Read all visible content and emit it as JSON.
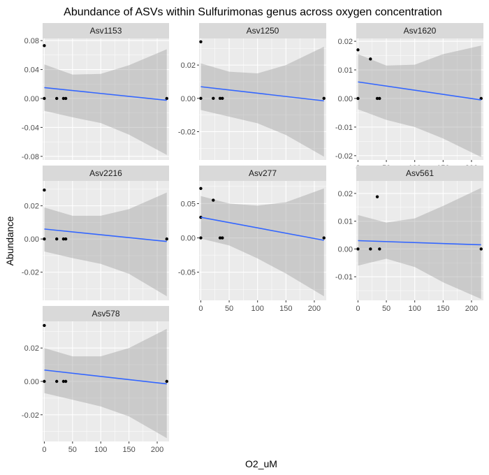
{
  "chart_data": {
    "type": "scatter",
    "title": "Abundance of ASVs within Sulfurimonas genus across oxygen concentration",
    "xlabel": "O2_uM",
    "ylabel": "Abundance",
    "xlim": [
      -3,
      221
    ],
    "xticks": [
      0,
      50,
      100,
      150,
      200
    ],
    "colors": {
      "panel_bg": "#ebebeb",
      "strip_bg": "#d9d9d9",
      "grid": "#ffffff",
      "ribbon": "#999999",
      "line": "#3366ff",
      "point": "#000000"
    },
    "panels": [
      {
        "name": "Asv1153",
        "ylim": [
          -0.085,
          0.083
        ],
        "yticks": [
          -0.08,
          -0.04,
          0.0,
          0.04,
          0.08
        ],
        "ytick_labels": [
          "-0.08",
          "-0.04",
          "0.00",
          "0.04",
          "0.08"
        ],
        "points": [
          [
            0,
            0.073
          ],
          [
            0,
            0.0
          ],
          [
            22,
            0.0
          ],
          [
            34,
            0.0
          ],
          [
            38,
            0.0
          ],
          [
            217,
            0.0
          ]
        ],
        "fit": [
          0.015,
          -0.0025
        ],
        "band_upper": [
          [
            0,
            0.047
          ],
          [
            50,
            0.033
          ],
          [
            100,
            0.034
          ],
          [
            150,
            0.046
          ],
          [
            217,
            0.068
          ]
        ],
        "band_lower": [
          [
            0,
            -0.017
          ],
          [
            50,
            -0.026
          ],
          [
            100,
            -0.034
          ],
          [
            150,
            -0.05
          ],
          [
            217,
            -0.078
          ]
        ]
      },
      {
        "name": "Asv1250",
        "ylim": [
          -0.037,
          0.036
        ],
        "yticks": [
          -0.02,
          0.0,
          0.02
        ],
        "ytick_labels": [
          "-0.02",
          "0.00",
          "0.02"
        ],
        "points": [
          [
            0,
            0.034
          ],
          [
            0,
            0.0
          ],
          [
            22,
            0.0
          ],
          [
            34,
            0.0
          ],
          [
            38,
            0.0
          ],
          [
            217,
            0.0
          ]
        ],
        "fit": [
          0.007,
          -0.0015
        ],
        "band_upper": [
          [
            0,
            0.021
          ],
          [
            50,
            0.016
          ],
          [
            100,
            0.015
          ],
          [
            150,
            0.02
          ],
          [
            217,
            0.031
          ]
        ],
        "band_lower": [
          [
            0,
            -0.007
          ],
          [
            50,
            -0.011
          ],
          [
            100,
            -0.015
          ],
          [
            150,
            -0.022
          ],
          [
            217,
            -0.035
          ]
        ]
      },
      {
        "name": "Asv1620",
        "ylim": [
          -0.0215,
          0.021
        ],
        "yticks": [
          -0.02,
          -0.01,
          0.0,
          0.01,
          0.02
        ],
        "ytick_labels": [
          "-0.02",
          "-0.01",
          "0.00",
          "0.01",
          "0.02"
        ],
        "points": [
          [
            0,
            0.017
          ],
          [
            0,
            0.0
          ],
          [
            22,
            0.0138
          ],
          [
            34,
            0.0
          ],
          [
            38,
            0.0
          ],
          [
            217,
            0.0
          ]
        ],
        "fit": [
          0.0058,
          -0.0005
        ],
        "band_upper": [
          [
            0,
            0.0155
          ],
          [
            50,
            0.0115
          ],
          [
            100,
            0.0118
          ],
          [
            150,
            0.0155
          ],
          [
            217,
            0.0185
          ]
        ],
        "band_lower": [
          [
            0,
            -0.0038
          ],
          [
            50,
            -0.0075
          ],
          [
            100,
            -0.01
          ],
          [
            150,
            -0.014
          ],
          [
            217,
            -0.0205
          ]
        ]
      },
      {
        "name": "Asv2216",
        "ylim": [
          -0.037,
          0.035
        ],
        "yticks": [
          -0.02,
          0.0,
          0.02
        ],
        "ytick_labels": [
          "-0.02",
          "0.00",
          "0.02"
        ],
        "points": [
          [
            0,
            0.0295
          ],
          [
            0,
            0.0
          ],
          [
            22,
            0.0
          ],
          [
            34,
            0.0
          ],
          [
            38,
            0.0
          ],
          [
            217,
            0.0
          ]
        ],
        "fit": [
          0.006,
          -0.0015
        ],
        "band_upper": [
          [
            0,
            0.019
          ],
          [
            50,
            0.014
          ],
          [
            100,
            0.014
          ],
          [
            150,
            0.018
          ],
          [
            217,
            0.028
          ]
        ],
        "band_lower": [
          [
            0,
            -0.0075
          ],
          [
            50,
            -0.0115
          ],
          [
            100,
            -0.015
          ],
          [
            150,
            -0.021
          ],
          [
            217,
            -0.0345
          ]
        ]
      },
      {
        "name": "Asv277",
        "ylim": [
          -0.091,
          0.083
        ],
        "yticks": [
          -0.05,
          0.0,
          0.05
        ],
        "ytick_labels": [
          "-0.05",
          "0.00",
          "0.05"
        ],
        "points": [
          [
            0,
            0.072
          ],
          [
            0,
            0.03
          ],
          [
            0,
            0.0
          ],
          [
            22,
            0.055
          ],
          [
            34,
            0.0
          ],
          [
            38,
            0.0
          ],
          [
            217,
            0.0
          ]
        ],
        "fit": [
          0.03,
          -0.0035
        ],
        "band_upper": [
          [
            0,
            0.061
          ],
          [
            50,
            0.05
          ],
          [
            100,
            0.047
          ],
          [
            150,
            0.052
          ],
          [
            217,
            0.072
          ]
        ],
        "band_lower": [
          [
            0,
            -0.001
          ],
          [
            50,
            -0.011
          ],
          [
            100,
            -0.03
          ],
          [
            150,
            -0.052
          ],
          [
            217,
            -0.085
          ]
        ]
      },
      {
        "name": "Asv561",
        "ylim": [
          -0.0185,
          0.0245
        ],
        "yticks": [
          -0.01,
          0.0,
          0.01,
          0.02
        ],
        "ytick_labels": [
          "-0.01",
          "0.00",
          "0.01",
          "0.02"
        ],
        "points": [
          [
            0,
            0.0
          ],
          [
            22,
            0.0
          ],
          [
            34,
            0.0188
          ],
          [
            38,
            0.0
          ],
          [
            217,
            0.0
          ]
        ],
        "fit": [
          0.003,
          0.0015
        ],
        "band_upper": [
          [
            0,
            0.0122
          ],
          [
            50,
            0.0095
          ],
          [
            100,
            0.011
          ],
          [
            150,
            0.0155
          ],
          [
            217,
            0.022
          ]
        ],
        "band_lower": [
          [
            0,
            -0.006
          ],
          [
            50,
            -0.0035
          ],
          [
            100,
            -0.0065
          ],
          [
            150,
            -0.012
          ],
          [
            217,
            -0.018
          ]
        ]
      },
      {
        "name": "Asv578",
        "ylim": [
          -0.036,
          0.036
        ],
        "yticks": [
          -0.02,
          0.0,
          0.02
        ],
        "ytick_labels": [
          "-0.02",
          "0.00",
          "0.02"
        ],
        "points": [
          [
            0,
            0.0335
          ],
          [
            0,
            0.0
          ],
          [
            22,
            0.0
          ],
          [
            34,
            0.0
          ],
          [
            38,
            0.0
          ],
          [
            217,
            0.0
          ]
        ],
        "fit": [
          0.0068,
          -0.0015
        ],
        "band_upper": [
          [
            0,
            0.02
          ],
          [
            50,
            0.015
          ],
          [
            100,
            0.015
          ],
          [
            150,
            0.02
          ],
          [
            217,
            0.0315
          ]
        ],
        "band_lower": [
          [
            0,
            -0.007
          ],
          [
            50,
            -0.011
          ],
          [
            100,
            -0.015
          ],
          [
            150,
            -0.021
          ],
          [
            217,
            -0.034
          ]
        ]
      }
    ]
  }
}
